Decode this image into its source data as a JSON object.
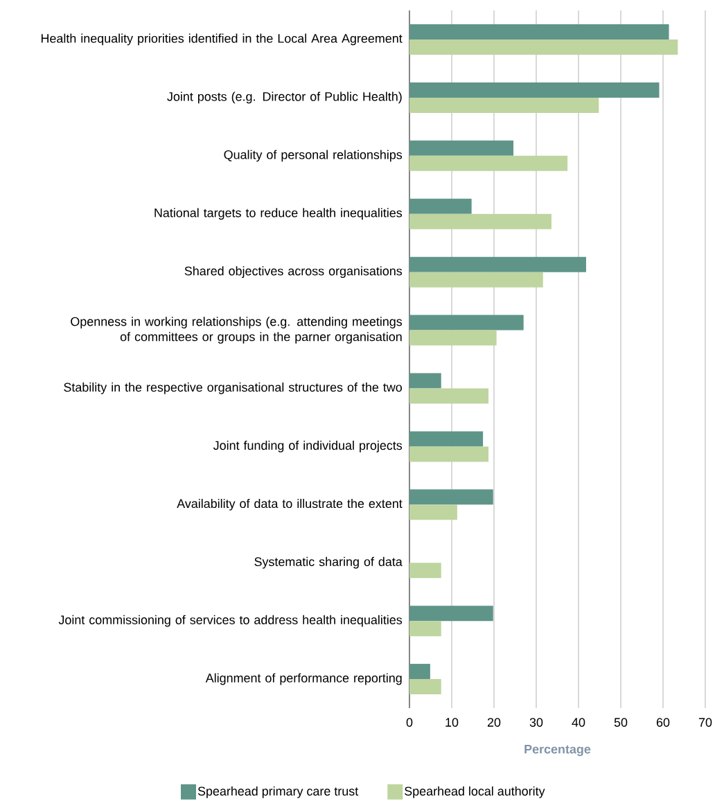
{
  "chart_data": {
    "type": "bar",
    "orientation": "horizontal",
    "categories": [
      "Health inequality priorities identified in the Local Area Agreement",
      "Joint posts (e.g. Director of Public Health)",
      "Quality of personal relationships",
      "National targets to reduce health inequalities",
      "Shared objectives across organisations",
      "Openness in working relationships (e.g. attending meetings of committees or groups in the parner organisation",
      "Stability in the respective organisational structures of the two",
      "Joint funding of individual projects",
      "Availability of data to illustrate the extent",
      "Systematic sharing of data",
      "Joint commissioning of services to address health inequalities",
      "Alignment of performance reporting"
    ],
    "series": [
      {
        "name": "Spearhead primary care trust",
        "color": "#5f9589",
        "values": [
          61.4,
          59.1,
          24.6,
          14.7,
          41.8,
          27.0,
          7.5,
          17.4,
          19.8,
          null,
          19.8,
          4.9
        ]
      },
      {
        "name": "Spearhead local authority",
        "color": "#bed59f",
        "values": [
          63.5,
          44.8,
          37.4,
          33.6,
          31.6,
          20.6,
          18.7,
          18.7,
          11.3,
          7.5,
          7.5,
          7.5
        ]
      }
    ],
    "xlabel": "Percentage",
    "xlim": [
      0,
      70
    ],
    "xticks": [
      0,
      10,
      20,
      30,
      40,
      50,
      60,
      70
    ],
    "grid": "x",
    "legend": "bottom"
  }
}
